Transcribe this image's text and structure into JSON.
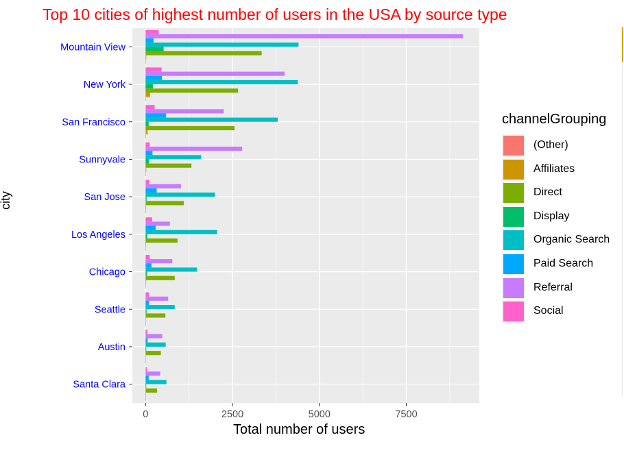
{
  "chart_data": {
    "type": "bar",
    "orientation": "horizontal",
    "title": "Top 10 cities of highest number of users in the USA by source type",
    "xlabel": "Total number of users",
    "ylabel": "city",
    "xlim": [
      -380,
      9600
    ],
    "x_ticks": [
      0,
      2500,
      5000,
      7500
    ],
    "x_tick_labels": [
      "0",
      "2500",
      "5000",
      "7500"
    ],
    "grid": true,
    "legend_title": "channelGrouping",
    "legend_position": "right",
    "categories": [
      "Mountain View",
      "New York",
      "San Francisco",
      "Sunnyvale",
      "San Jose",
      "Los Angeles",
      "Chicago",
      "Seattle",
      "Austin",
      "Santa Clara"
    ],
    "series": [
      {
        "name": "Social",
        "color": "#FF61CC",
        "values": [
          380,
          460,
          260,
          120,
          110,
          190,
          120,
          100,
          50,
          40
        ]
      },
      {
        "name": "Referral",
        "color": "#C77CFF",
        "values": [
          9130,
          4000,
          2250,
          2780,
          1020,
          700,
          770,
          650,
          480,
          420
        ]
      },
      {
        "name": "Paid Search",
        "color": "#00A9FF",
        "values": [
          230,
          470,
          590,
          200,
          320,
          290,
          170,
          100,
          60,
          90
        ]
      },
      {
        "name": "Organic Search",
        "color": "#00BFC4",
        "values": [
          4400,
          4380,
          3800,
          1600,
          2000,
          2060,
          1480,
          840,
          580,
          600
        ]
      },
      {
        "name": "Display",
        "color": "#00BE67",
        "values": [
          520,
          210,
          90,
          100,
          30,
          50,
          40,
          30,
          20,
          20
        ]
      },
      {
        "name": "Direct",
        "color": "#7CAE00",
        "values": [
          3340,
          2660,
          2560,
          1320,
          1100,
          920,
          840,
          570,
          440,
          330
        ]
      },
      {
        "name": "Affiliates",
        "color": "#CD9600",
        "values": [
          20,
          130,
          60,
          20,
          15,
          15,
          15,
          10,
          8,
          5
        ]
      },
      {
        "name": "(Other)",
        "color": "#F8766D",
        "values": [
          5,
          3,
          3,
          2,
          2,
          2,
          2,
          1,
          1,
          1
        ]
      }
    ],
    "legend_entries": [
      {
        "name": "(Other)",
        "color": "#F8766D"
      },
      {
        "name": "Affiliates",
        "color": "#CD9600"
      },
      {
        "name": "Direct",
        "color": "#7CAE00"
      },
      {
        "name": "Display",
        "color": "#00BE67"
      },
      {
        "name": "Organic Search",
        "color": "#00BFC4"
      },
      {
        "name": "Paid Search",
        "color": "#00A9FF"
      },
      {
        "name": "Referral",
        "color": "#C77CFF"
      },
      {
        "name": "Social",
        "color": "#FF61CC"
      }
    ],
    "colors": {
      "title": "#FF0000",
      "category_labels": "#0000FF",
      "panel": "#EBEBEB",
      "grid": "#FFFFFF"
    }
  }
}
